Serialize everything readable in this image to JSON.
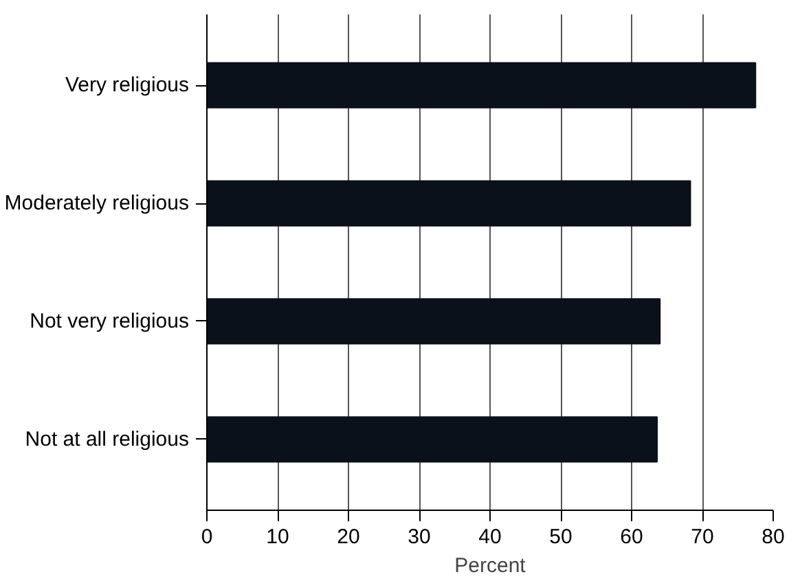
{
  "chart_data": {
    "type": "bar",
    "orientation": "horizontal",
    "categories": [
      "Very religious",
      "Moderately religious",
      "Not very religious",
      "Not at all religious"
    ],
    "values": [
      77.5,
      68.3,
      64.0,
      63.6
    ],
    "color": "#0a111a",
    "xlabel": "Percent",
    "xlim": [
      0,
      80
    ],
    "xticks": [
      0,
      10,
      20,
      30,
      40,
      50,
      60,
      70,
      80
    ],
    "grid": "x"
  }
}
